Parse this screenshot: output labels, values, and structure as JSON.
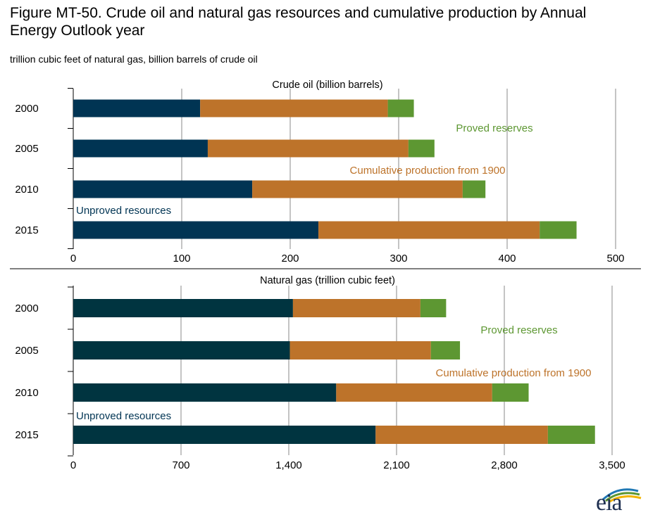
{
  "title": "Figure MT-50. Crude oil and natural gas resources and cumulative production by Annual Energy Outlook year",
  "subtitle": "trillion cubic feet of natural gas, billion barrels of crude oil",
  "logo_text": "eia",
  "colors": {
    "oil_unproved": "#003453",
    "gas_unproved": "#003440",
    "cumulative": "#bd732a",
    "proved": "#5d9732",
    "grid": "#888888",
    "label_unproved": "#003453",
    "label_cumulative": "#bd732a",
    "label_proved": "#5d9732"
  },
  "chart_data": [
    {
      "type": "bar",
      "orientation": "horizontal",
      "stacked": true,
      "title": "Crude oil (billion barrels)",
      "categories": [
        "2000",
        "2005",
        "2010",
        "2015"
      ],
      "xlim": [
        0,
        500
      ],
      "ticks": [
        0,
        100,
        200,
        300,
        400,
        500
      ],
      "tick_labels": [
        "0",
        "100",
        "200",
        "300",
        "400",
        "500"
      ],
      "grid": true,
      "series": [
        {
          "name": "Unproved resources",
          "values": [
            117,
            124,
            165,
            226
          ]
        },
        {
          "name": "Cumulative production from 1900",
          "values": [
            173,
            185,
            194,
            204
          ]
        },
        {
          "name": "Proved reserves",
          "values": [
            24,
            24,
            21,
            34
          ]
        }
      ]
    },
    {
      "type": "bar",
      "orientation": "horizontal",
      "stacked": true,
      "title": "Natural gas (trillion cubic feet)",
      "categories": [
        "2000",
        "2005",
        "2010",
        "2015"
      ],
      "xlim": [
        0,
        3500
      ],
      "ticks": [
        0,
        700,
        1400,
        2100,
        2800,
        3500
      ],
      "tick_labels": [
        "0",
        "700",
        "1,400",
        "2,100",
        "2,800",
        "3,500"
      ],
      "grid": true,
      "series": [
        {
          "name": "Unproved resources",
          "values": [
            1427,
            1407,
            1708,
            1964
          ]
        },
        {
          "name": "Cumulative production from 1900",
          "values": [
            828,
            916,
            1013,
            1119
          ]
        },
        {
          "name": "Proved reserves",
          "values": [
            167,
            189,
            237,
            306
          ]
        }
      ]
    }
  ]
}
